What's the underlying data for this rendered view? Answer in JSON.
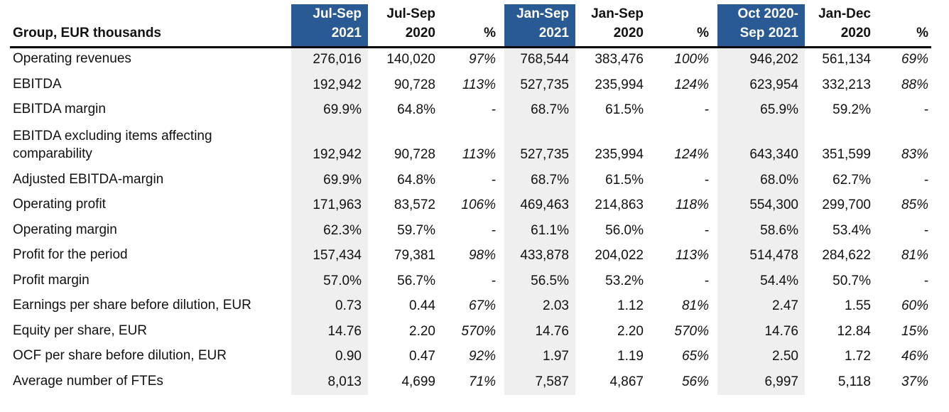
{
  "table": {
    "colors": {
      "header_highlight": "#2a5a94",
      "header_highlight_text": "#ffffff",
      "column_shading": "#efefef",
      "rule": "#000000"
    },
    "header": {
      "corner": "Group, EUR thousands",
      "cols": [
        {
          "line1": "Jul-Sep",
          "line2": "2021",
          "highlight": true
        },
        {
          "line1": "Jul-Sep",
          "line2": "2020",
          "highlight": false
        },
        {
          "line1": "",
          "line2": "%",
          "highlight": false
        },
        {
          "line1": "Jan-Sep",
          "line2": "2021",
          "highlight": true
        },
        {
          "line1": "Jan-Sep",
          "line2": "2020",
          "highlight": false
        },
        {
          "line1": "",
          "line2": "%",
          "highlight": false
        },
        {
          "line1": "Oct 2020-",
          "line2": "Sep 2021",
          "highlight": true
        },
        {
          "line1": "Jan-Dec",
          "line2": "2020",
          "highlight": false
        },
        {
          "line1": "",
          "line2": "%",
          "highlight": false
        }
      ]
    },
    "rows": [
      {
        "label": "Operating revenues",
        "values": [
          "276,016",
          "140,020",
          "97%",
          "768,544",
          "383,476",
          "100%",
          "946,202",
          "561,134",
          "69%"
        ]
      },
      {
        "label": "EBITDA",
        "values": [
          "192,942",
          "90,728",
          "113%",
          "527,735",
          "235,994",
          "124%",
          "623,954",
          "332,213",
          "88%"
        ]
      },
      {
        "label": "EBITDA margin",
        "values": [
          "69.9%",
          "64.8%",
          "-",
          "68.7%",
          "61.5%",
          "-",
          "65.9%",
          "59.2%",
          "-"
        ]
      },
      {
        "label": "EBITDA excluding items affecting\ncomparability",
        "values": [
          "192,942",
          "90,728",
          "113%",
          "527,735",
          "235,994",
          "124%",
          "643,340",
          "351,599",
          "83%"
        ]
      },
      {
        "label": "Adjusted EBITDA-margin",
        "values": [
          "69.9%",
          "64.8%",
          "-",
          "68.7%",
          "61.5%",
          "-",
          "68.0%",
          "62.7%",
          "-"
        ]
      },
      {
        "label": "Operating profit",
        "values": [
          "171,963",
          "83,572",
          "106%",
          "469,463",
          "214,863",
          "118%",
          "554,300",
          "299,700",
          "85%"
        ]
      },
      {
        "label": "Operating margin",
        "values": [
          "62.3%",
          "59.7%",
          "-",
          "61.1%",
          "56.0%",
          "-",
          "58.6%",
          "53.4%",
          "-"
        ]
      },
      {
        "label": "Profit for the period",
        "values": [
          "157,434",
          "79,381",
          "98%",
          "433,878",
          "204,022",
          "113%",
          "514,478",
          "284,622",
          "81%"
        ]
      },
      {
        "label": "Profit margin",
        "values": [
          "57.0%",
          "56.7%",
          "-",
          "56.5%",
          "53.2%",
          "-",
          "54.4%",
          "50.7%",
          "-"
        ]
      },
      {
        "label": "Earnings per share before dilution, EUR",
        "values": [
          "0.73",
          "0.44",
          "67%",
          "2.03",
          "1.12",
          "81%",
          "2.47",
          "1.55",
          "60%"
        ]
      },
      {
        "label": "Equity per share, EUR",
        "values": [
          "14.76",
          "2.20",
          "570%",
          "14.76",
          "2.20",
          "570%",
          "14.76",
          "12.84",
          "15%"
        ]
      },
      {
        "label": "OCF per share before dilution, EUR",
        "values": [
          "0.90",
          "0.47",
          "92%",
          "1.97",
          "1.19",
          "65%",
          "2.50",
          "1.72",
          "46%"
        ]
      },
      {
        "label": "Average number of FTEs",
        "values": [
          "8,013",
          "4,699",
          "71%",
          "7,587",
          "4,867",
          "56%",
          "6,997",
          "5,118",
          "37%"
        ]
      }
    ]
  }
}
